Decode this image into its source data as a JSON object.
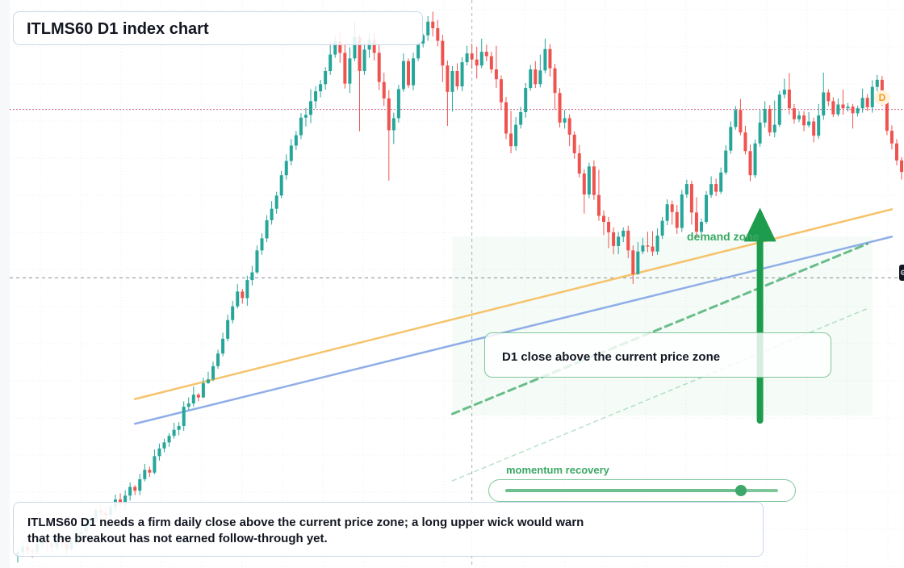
{
  "title": "ITLMS60 D1 index chart",
  "note": "ITLMS60 D1 needs a firm daily close above the current price zone; a long upper wick would warn that the breakout has not earned follow-through yet.",
  "callout": "D1 close above the current price zone",
  "zone_label": "demand zone",
  "slider": {
    "label": "momentum recovery",
    "value": 0.865
  },
  "timeframe_badge": "D",
  "edge_icon": "chart-settings-icon",
  "colors": {
    "bull": "#26a69a",
    "bear": "#ef5350",
    "zone": "#3aa864",
    "trend_orange": "#f6c36b",
    "trend_blue": "#8faee8",
    "price_line": "#c2185b"
  },
  "chart_data": {
    "type": "candlestick",
    "title": "ITLMS60 D1 index chart",
    "xlabel": "",
    "ylabel": "",
    "ylim": [
      0,
      100
    ],
    "price_line": 83.0,
    "crosshair": {
      "bar": 93,
      "value": 52.3
    },
    "candles": [
      [
        1.6,
        2.3,
        0.4,
        2.7
      ],
      [
        2.3,
        3.3,
        1.6,
        4.3
      ],
      [
        3.3,
        2.5,
        1.8,
        4.0
      ],
      [
        2.5,
        2.4,
        1.3,
        3.2
      ],
      [
        2.4,
        3.8,
        1.9,
        5.0
      ],
      [
        3.8,
        4.5,
        3.0,
        5.6
      ],
      [
        4.5,
        4.0,
        2.5,
        5.3
      ],
      [
        4.0,
        3.2,
        2.2,
        4.0
      ],
      [
        3.2,
        4.8,
        2.7,
        5.4
      ],
      [
        4.8,
        3.9,
        3.1,
        5.6
      ],
      [
        3.9,
        2.8,
        1.9,
        5.2
      ],
      [
        2.8,
        4.1,
        2.6,
        4.8
      ],
      [
        4.1,
        5.6,
        3.5,
        6.6
      ],
      [
        5.6,
        6.0,
        4.9,
        7.1
      ],
      [
        6.0,
        7.6,
        5.3,
        8.6
      ],
      [
        7.6,
        8.4,
        6.6,
        9.1
      ],
      [
        8.4,
        10.0,
        7.8,
        10.4
      ],
      [
        10.0,
        9.5,
        8.6,
        11.0
      ],
      [
        9.5,
        9.0,
        8.2,
        10.6
      ],
      [
        9.0,
        10.5,
        8.0,
        11.0
      ],
      [
        10.5,
        11.9,
        9.5,
        12.8
      ],
      [
        11.9,
        11.0,
        10.4,
        13.0
      ],
      [
        11.0,
        12.6,
        10.0,
        13.6
      ],
      [
        12.6,
        14.2,
        11.7,
        15.0
      ],
      [
        14.2,
        13.5,
        12.7,
        14.5
      ],
      [
        13.5,
        15.6,
        12.7,
        16.6
      ],
      [
        15.6,
        17.3,
        15.2,
        18.4
      ],
      [
        17.3,
        16.8,
        16.0,
        17.9
      ],
      [
        16.8,
        19.8,
        16.5,
        21.0
      ],
      [
        19.8,
        21.2,
        19.0,
        22.1
      ],
      [
        21.2,
        22.3,
        20.5,
        23.0
      ],
      [
        22.3,
        23.5,
        21.5,
        24.0
      ],
      [
        23.5,
        24.6,
        23.0,
        25.9
      ],
      [
        24.6,
        25.3,
        23.6,
        26.0
      ],
      [
        25.3,
        28.8,
        24.4,
        29.8
      ],
      [
        28.8,
        29.4,
        28.2,
        30.5
      ],
      [
        29.4,
        31.0,
        28.8,
        32.5
      ],
      [
        31.0,
        30.5,
        29.8,
        31.3
      ],
      [
        30.5,
        33.1,
        30.4,
        34.1
      ],
      [
        33.1,
        33.8,
        33.0,
        35.2
      ],
      [
        33.8,
        36.2,
        33.5,
        37.0
      ],
      [
        36.2,
        38.5,
        35.7,
        39.2
      ],
      [
        38.5,
        41.2,
        38.0,
        42.3
      ],
      [
        41.2,
        44.6,
        40.7,
        45.6
      ],
      [
        44.6,
        47.1,
        44.0,
        48.1
      ],
      [
        47.1,
        49.8,
        46.7,
        51.2
      ],
      [
        49.8,
        48.6,
        47.6,
        50.3
      ],
      [
        48.6,
        51.9,
        47.2,
        52.7
      ],
      [
        51.9,
        53.3,
        50.9,
        54.5
      ],
      [
        53.3,
        57.3,
        53.0,
        58.2
      ],
      [
        57.3,
        59.5,
        56.5,
        60.4
      ],
      [
        59.5,
        62.8,
        58.8,
        63.7
      ],
      [
        62.8,
        64.9,
        62.0,
        66.3
      ],
      [
        64.9,
        67.3,
        64.0,
        68.0
      ],
      [
        67.3,
        71.0,
        66.8,
        71.8
      ],
      [
        71.0,
        73.6,
        70.2,
        74.8
      ],
      [
        73.6,
        76.4,
        72.8,
        77.6
      ],
      [
        76.4,
        78.3,
        75.6,
        79.1
      ],
      [
        78.3,
        81.5,
        77.6,
        82.3
      ],
      [
        81.5,
        82.0,
        79.9,
        83.3
      ],
      [
        82.0,
        84.5,
        80.5,
        86.7
      ],
      [
        84.5,
        86.3,
        83.2,
        87.2
      ],
      [
        86.3,
        87.6,
        85.2,
        88.4
      ],
      [
        87.6,
        90.0,
        86.6,
        90.7
      ],
      [
        90.0,
        93.0,
        89.3,
        95.3
      ],
      [
        93.0,
        95.4,
        92.4,
        96.5
      ],
      [
        95.4,
        93.3,
        91.5,
        97.0
      ],
      [
        93.3,
        87.7,
        86.8,
        95.0
      ],
      [
        87.7,
        92.3,
        86.0,
        94.3
      ],
      [
        92.3,
        96.2,
        91.8,
        99.0
      ],
      [
        96.2,
        90.0,
        79.0,
        96.6
      ],
      [
        90.0,
        93.9,
        89.3,
        95.3
      ],
      [
        93.9,
        95.7,
        92.4,
        97.0
      ],
      [
        95.7,
        93.3,
        91.9,
        96.9
      ],
      [
        93.3,
        88.0,
        86.5,
        94.9
      ],
      [
        88.0,
        85.0,
        83.6,
        89.7
      ],
      [
        85.0,
        79.2,
        70.0,
        86.5
      ],
      [
        79.2,
        81.4,
        76.7,
        82.4
      ],
      [
        81.4,
        86.7,
        80.6,
        87.5
      ],
      [
        86.7,
        91.8,
        86.2,
        93.2
      ],
      [
        91.8,
        87.4,
        86.9,
        92.3
      ],
      [
        87.4,
        92.3,
        86.5,
        93.3
      ],
      [
        92.3,
        95.0,
        91.8,
        95.6
      ],
      [
        95.0,
        96.5,
        94.3,
        96.8
      ],
      [
        96.5,
        99.0,
        95.5,
        100.0
      ],
      [
        99.0,
        97.8,
        96.3,
        100.8
      ],
      [
        97.8,
        95.5,
        94.5,
        99.3
      ],
      [
        95.5,
        91.0,
        88.0,
        96.6
      ],
      [
        91.0,
        86.2,
        80.0,
        91.9
      ],
      [
        86.2,
        90.0,
        82.6,
        90.9
      ],
      [
        90.0,
        87.2,
        86.5,
        91.4
      ],
      [
        87.2,
        91.6,
        86.3,
        92.5
      ],
      [
        91.6,
        93.2,
        91.0,
        94.6
      ],
      [
        93.2,
        92.1,
        90.4,
        95.0
      ],
      [
        92.1,
        91.0,
        88.6,
        94.4
      ],
      [
        91.0,
        93.5,
        90.5,
        95.9
      ],
      [
        93.5,
        92.7,
        91.8,
        94.8
      ],
      [
        92.7,
        90.3,
        89.6,
        93.5
      ],
      [
        90.3,
        88.5,
        86.9,
        94.6
      ],
      [
        88.5,
        84.3,
        83.0,
        89.2
      ],
      [
        84.3,
        78.6,
        77.6,
        85.3
      ],
      [
        78.6,
        76.3,
        75.0,
        82.7
      ],
      [
        76.3,
        80.2,
        75.5,
        81.6
      ],
      [
        80.2,
        82.5,
        79.5,
        83.5
      ],
      [
        82.5,
        86.9,
        81.5,
        87.8
      ],
      [
        86.9,
        90.3,
        86.4,
        91.1
      ],
      [
        90.3,
        87.6,
        86.9,
        91.8
      ],
      [
        87.6,
        90.1,
        87.0,
        93.0
      ],
      [
        90.1,
        94.0,
        89.6,
        95.9
      ],
      [
        94.0,
        90.5,
        89.0,
        94.9
      ],
      [
        90.5,
        86.0,
        83.0,
        91.3
      ],
      [
        86.0,
        80.6,
        79.7,
        86.9
      ],
      [
        80.6,
        81.4,
        79.5,
        82.9
      ],
      [
        81.4,
        78.4,
        76.3,
        82.1
      ],
      [
        78.4,
        75.0,
        74.0,
        79.0
      ],
      [
        75.0,
        71.3,
        70.6,
        76.5
      ],
      [
        71.3,
        67.5,
        64.0,
        72.1
      ],
      [
        67.5,
        72.6,
        66.8,
        73.3
      ],
      [
        72.6,
        67.4,
        66.5,
        73.7
      ],
      [
        67.4,
        63.6,
        62.7,
        72.0
      ],
      [
        63.6,
        62.5,
        60.1,
        64.6
      ],
      [
        62.5,
        60.6,
        57.7,
        63.4
      ],
      [
        60.6,
        58.1,
        56.6,
        61.5
      ],
      [
        58.1,
        59.8,
        56.6,
        60.7
      ],
      [
        59.8,
        60.9,
        58.8,
        61.5
      ],
      [
        60.9,
        57.3,
        55.9,
        61.8
      ],
      [
        57.3,
        53.0,
        51.2,
        58.2
      ],
      [
        53.0,
        57.1,
        52.8,
        58.8
      ],
      [
        57.1,
        58.2,
        56.6,
        59.6
      ],
      [
        58.2,
        58.0,
        57.0,
        60.7
      ],
      [
        58.0,
        57.1,
        56.3,
        60.8
      ],
      [
        57.1,
        60.0,
        56.5,
        61.3
      ],
      [
        60.0,
        62.7,
        59.4,
        63.4
      ],
      [
        62.7,
        65.7,
        61.9,
        66.6
      ],
      [
        65.7,
        64.3,
        62.0,
        66.4
      ],
      [
        64.3,
        61.4,
        60.3,
        65.6
      ],
      [
        61.4,
        67.5,
        60.7,
        68.3
      ],
      [
        67.5,
        69.4,
        66.9,
        70.2
      ],
      [
        69.4,
        64.2,
        62.0,
        70.0
      ],
      [
        64.2,
        60.7,
        59.6,
        67.0
      ],
      [
        60.7,
        62.5,
        59.9,
        63.1
      ],
      [
        62.5,
        67.4,
        62.1,
        68.1
      ],
      [
        67.4,
        69.4,
        66.9,
        70.8
      ],
      [
        69.4,
        68.0,
        67.2,
        70.4
      ],
      [
        68.0,
        71.5,
        67.6,
        72.4
      ],
      [
        71.5,
        75.5,
        71.1,
        76.5
      ],
      [
        75.5,
        79.8,
        74.9,
        80.8
      ],
      [
        79.8,
        82.9,
        79.3,
        83.6
      ],
      [
        82.9,
        78.8,
        78.3,
        84.9
      ],
      [
        78.8,
        75.4,
        74.8,
        80.0
      ],
      [
        75.4,
        71.0,
        69.9,
        76.6
      ],
      [
        71.0,
        76.8,
        70.5,
        77.5
      ],
      [
        76.8,
        80.6,
        76.2,
        82.9
      ],
      [
        80.6,
        83.1,
        79.7,
        84.5
      ],
      [
        83.1,
        78.8,
        78.1,
        83.8
      ],
      [
        78.8,
        80.2,
        77.9,
        84.6
      ],
      [
        80.2,
        85.7,
        79.8,
        86.4
      ],
      [
        85.7,
        86.6,
        85.0,
        88.6
      ],
      [
        86.6,
        83.2,
        82.1,
        89.6
      ],
      [
        83.2,
        81.2,
        80.4,
        84.0
      ],
      [
        81.2,
        81.9,
        80.7,
        82.7
      ],
      [
        81.9,
        80.1,
        79.0,
        82.7
      ],
      [
        80.1,
        80.8,
        79.7,
        82.5
      ],
      [
        80.8,
        78.2,
        77.0,
        81.5
      ],
      [
        78.2,
        81.9,
        77.6,
        84.0
      ],
      [
        81.9,
        86.1,
        81.1,
        89.7
      ],
      [
        86.1,
        84.5,
        83.6,
        86.7
      ],
      [
        84.5,
        82.1,
        81.6,
        85.2
      ],
      [
        82.1,
        83.9,
        81.7,
        85.0
      ],
      [
        83.9,
        83.2,
        82.0,
        86.6
      ],
      [
        83.2,
        83.5,
        82.6,
        84.2
      ],
      [
        83.5,
        82.3,
        79.5,
        84.0
      ],
      [
        82.3,
        83.2,
        81.7,
        83.7
      ],
      [
        83.2,
        85.1,
        82.4,
        86.8
      ],
      [
        85.1,
        83.4,
        82.7,
        85.8
      ],
      [
        83.4,
        87.1,
        82.4,
        88.3
      ],
      [
        87.1,
        88.4,
        86.3,
        89.3
      ],
      [
        88.4,
        84.5,
        83.6,
        89.1
      ],
      [
        84.5,
        79.1,
        78.3,
        85.0
      ],
      [
        79.1,
        76.8,
        75.7,
        80.1
      ],
      [
        76.8,
        73.7,
        72.8,
        77.6
      ],
      [
        73.7,
        71.6,
        70.2,
        74.3
      ],
      [
        71.6,
        74.2,
        70.5,
        75.3
      ],
      [
        74.2,
        78.3,
        73.8,
        79.3
      ],
      [
        78.3,
        80.5,
        77.8,
        82.2
      ],
      [
        80.5,
        81.2,
        79.7,
        82.6
      ],
      [
        81.2,
        85.2,
        80.5,
        86.1
      ]
    ],
    "trendlines": [
      {
        "from": [
          24,
          30.2
        ],
        "to": [
          179,
          64.8
        ],
        "color": "orange"
      },
      {
        "from": [
          24,
          25.7
        ],
        "to": [
          179,
          59.8
        ],
        "color": "blue"
      },
      {
        "from": [
          89,
          27.5
        ],
        "to": [
          174,
          58.5
        ],
        "style": "dashed",
        "color": "green"
      },
      {
        "from": [
          89,
          15.3
        ],
        "to": [
          174,
          46.7
        ],
        "style": "dashed-thin",
        "color": "green"
      }
    ],
    "demand_zone": {
      "from": [
        89,
        27.2
      ],
      "to": [
        175,
        59.8
      ]
    },
    "arrow": {
      "bar": 152,
      "from": 26.3,
      "to": 65.1
    }
  }
}
